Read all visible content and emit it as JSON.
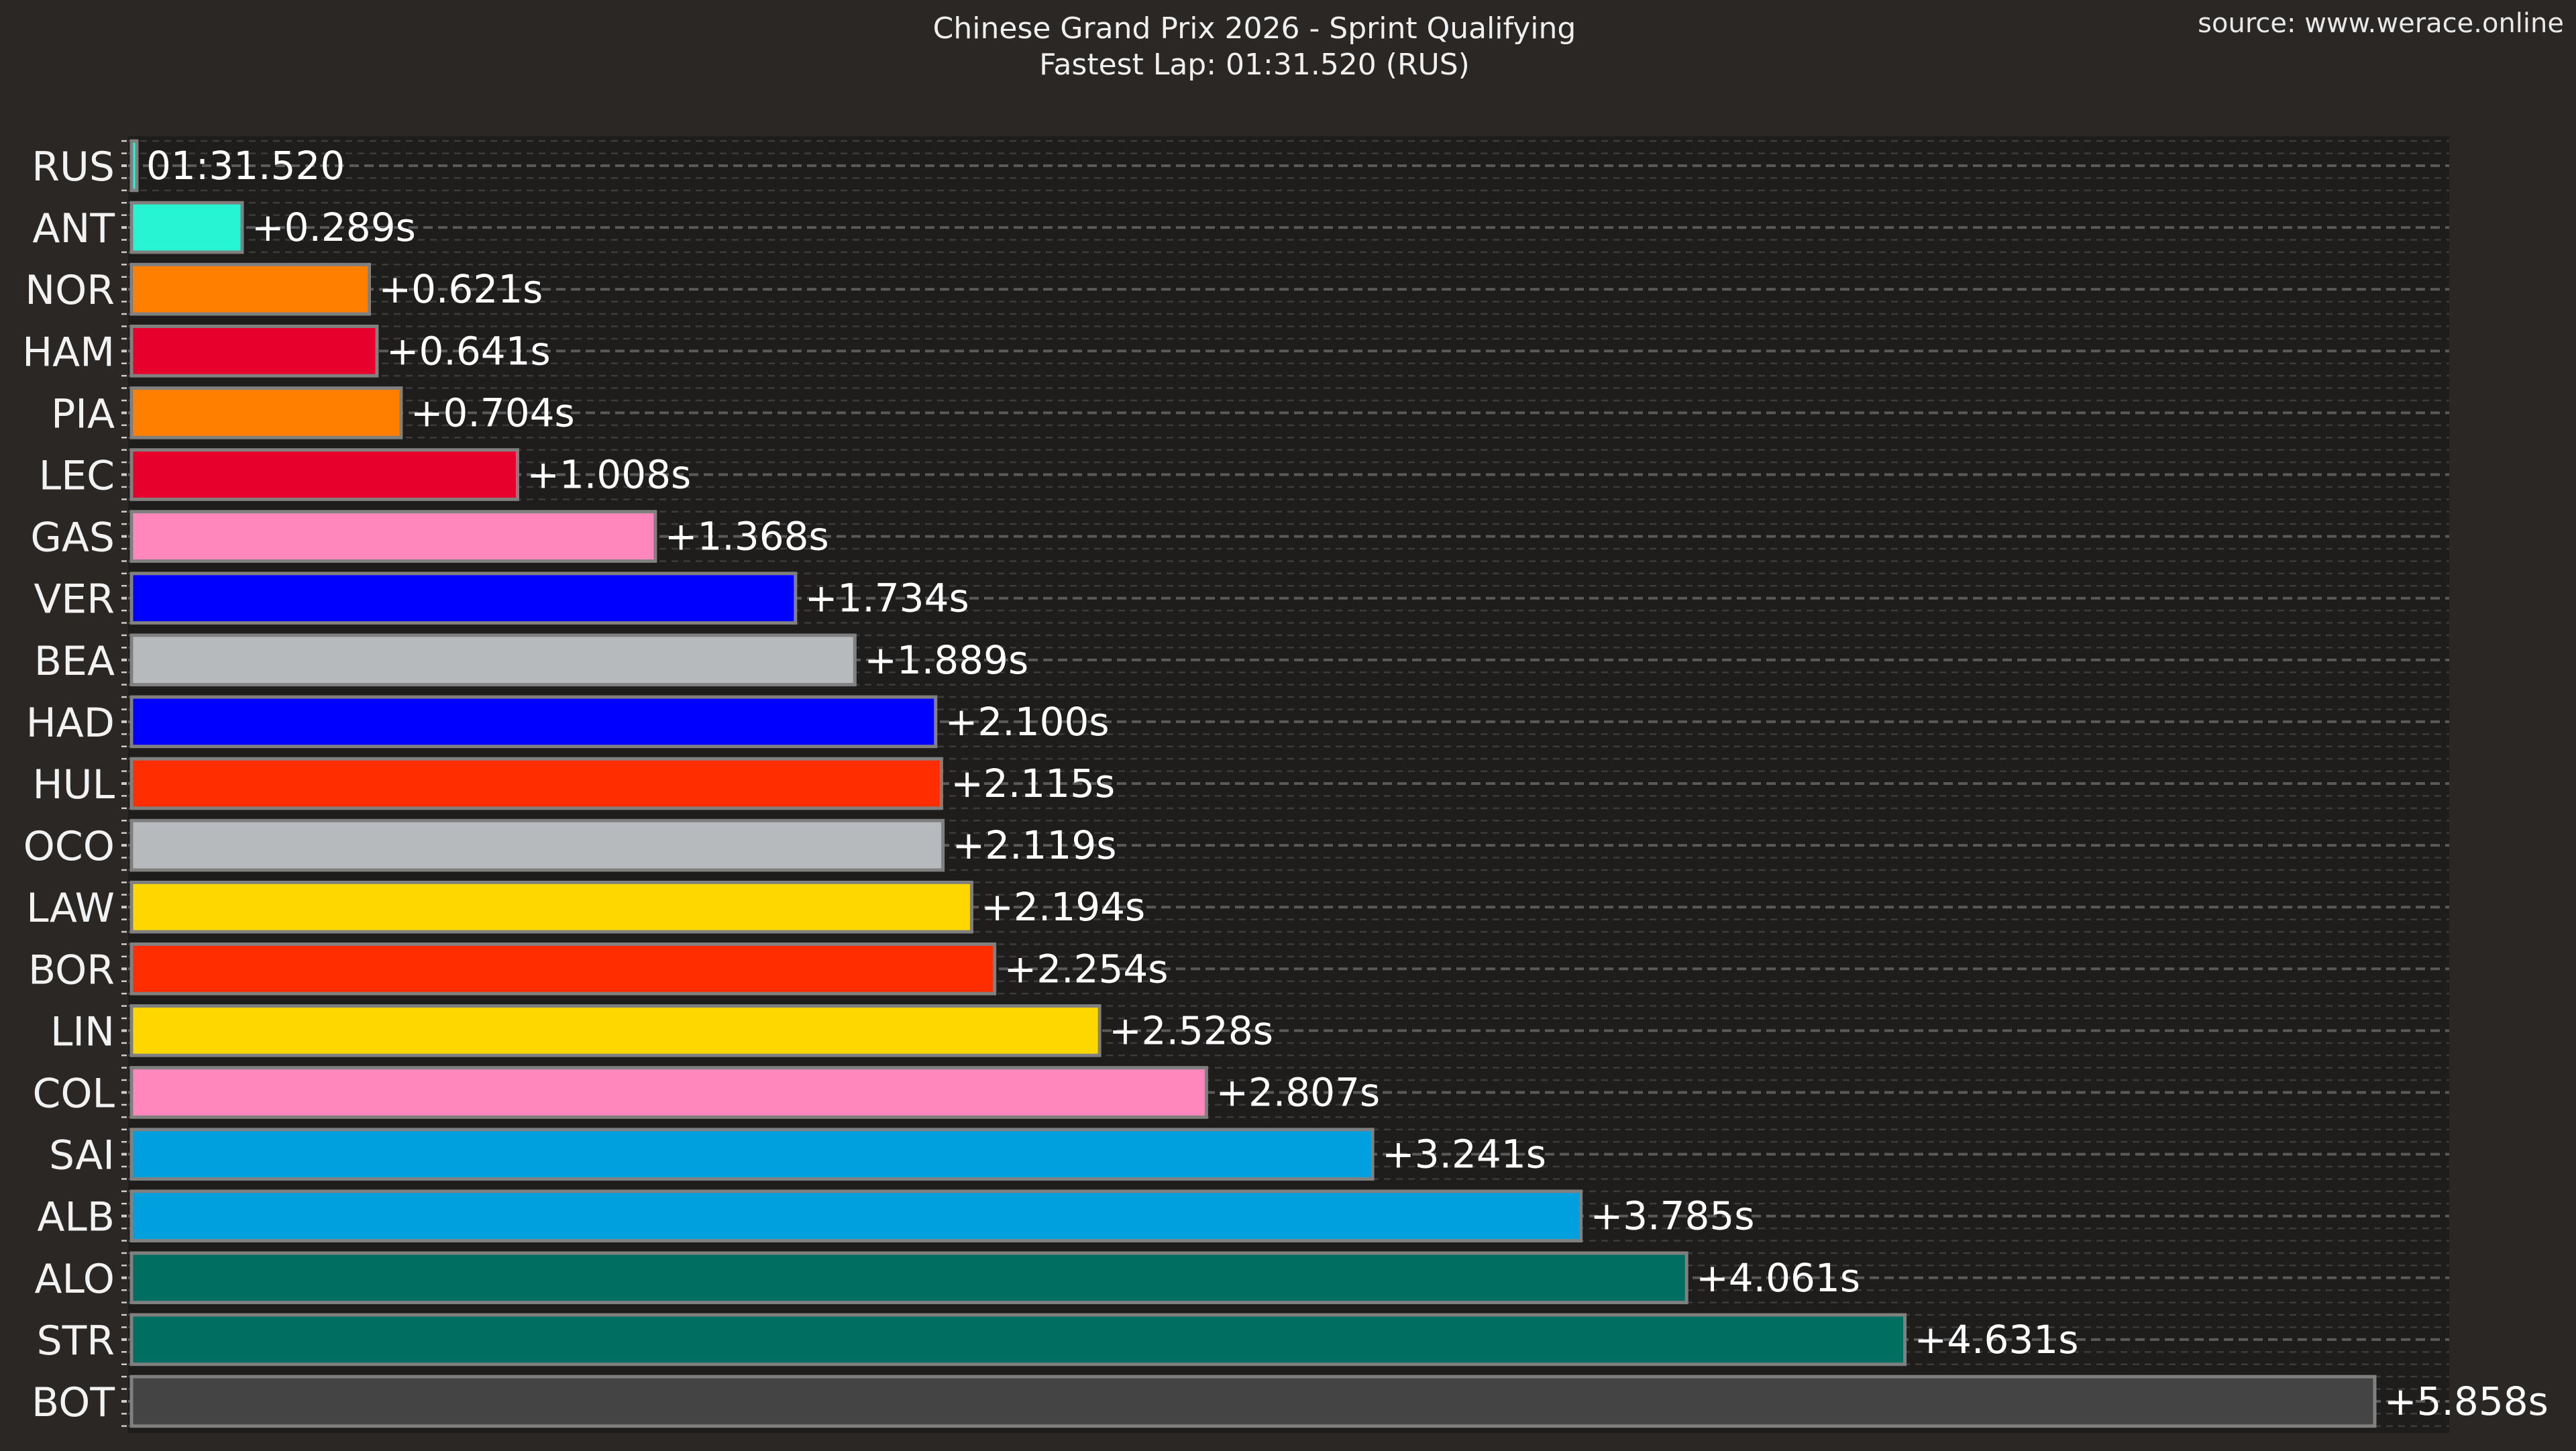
{
  "chart_data": {
    "type": "bar",
    "orientation": "horizontal",
    "title": "Chinese Grand Prix 2026 - Sprint Qualifying",
    "subtitle": "Fastest Lap: 01:31.520 (RUS)",
    "source": "source: www.werace.online",
    "xlabel": "",
    "ylabel": "",
    "xlim": [
      0,
      6.05
    ],
    "grid": true,
    "categories": [
      "RUS",
      "ANT",
      "NOR",
      "HAM",
      "PIA",
      "LEC",
      "GAS",
      "VER",
      "BEA",
      "HAD",
      "HUL",
      "OCO",
      "LAW",
      "BOR",
      "LIN",
      "COL",
      "SAI",
      "ALB",
      "ALO",
      "STR",
      "BOT"
    ],
    "values": [
      0.0,
      0.289,
      0.621,
      0.641,
      0.704,
      1.008,
      1.368,
      1.734,
      1.889,
      2.1,
      2.115,
      2.119,
      2.194,
      2.254,
      2.528,
      2.807,
      3.241,
      3.785,
      4.061,
      4.631,
      5.858
    ],
    "data_labels": [
      "01:31.520",
      "+0.289s",
      "+0.621s",
      "+0.641s",
      "+0.704s",
      "+1.008s",
      "+1.368s",
      "+1.734s",
      "+1.889s",
      "+2.100s",
      "+2.115s",
      "+2.119s",
      "+2.194s",
      "+2.254s",
      "+2.528s",
      "+2.807s",
      "+3.241s",
      "+3.785s",
      "+4.061s",
      "+4.631s",
      "+5.858s"
    ],
    "colors": [
      "#27F4D2",
      "#27F4D2",
      "#FF8000",
      "#E8002D",
      "#FF8000",
      "#E8002D",
      "#FF87BC",
      "#0000FF",
      "#B6BABD",
      "#0000FF",
      "#FF2D00",
      "#B6BABD",
      "#FFD700",
      "#FF2D00",
      "#FFD700",
      "#FF87BC",
      "#00A0DE",
      "#00A0DE",
      "#006F62",
      "#006F62",
      "#444444"
    ]
  }
}
